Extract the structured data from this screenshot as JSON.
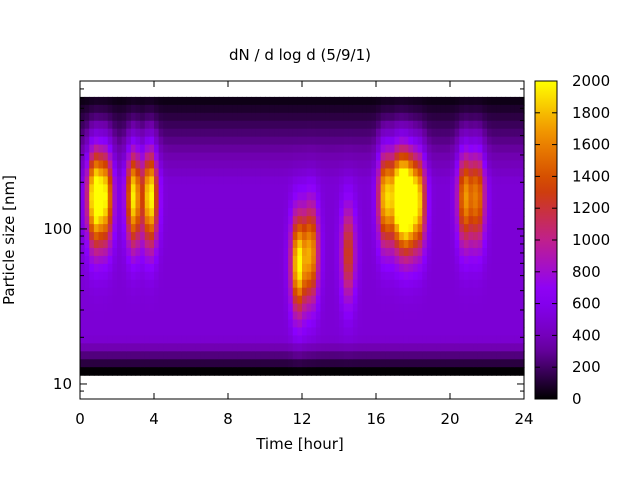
{
  "chart_data": {
    "type": "heatmap",
    "title": "dN / d log d (5/9/1)",
    "xlabel": "Time [hour]",
    "ylabel": "Particle size [nm]",
    "x_range": [
      0,
      24
    ],
    "x_ticks": [
      0,
      4,
      8,
      12,
      16,
      20,
      24
    ],
    "y_scale": "log",
    "y_range_nm": [
      8,
      900
    ],
    "y_ticks": [
      10,
      100
    ],
    "y_data_range_nm": [
      12,
      750
    ],
    "colorbar": {
      "range": [
        0,
        2000
      ],
      "ticks": [
        0,
        200,
        400,
        600,
        800,
        1000,
        1200,
        1400,
        1600,
        1800,
        2000
      ],
      "palette": "gnuplot-hot",
      "colors": [
        "#000000",
        "#6e00aa",
        "#8a00ff",
        "#c0208c",
        "#d04000",
        "#f09000",
        "#ffff00"
      ]
    },
    "background_level": 500,
    "events": [
      {
        "time_h": 0.8,
        "diameter_nm": 160,
        "peak": 1650
      },
      {
        "time_h": 1.4,
        "diameter_nm": 160,
        "peak": 1300
      },
      {
        "time_h": 2.9,
        "diameter_nm": 160,
        "peak": 1450
      },
      {
        "time_h": 3.8,
        "diameter_nm": 160,
        "peak": 1550
      },
      {
        "time_h": 11.8,
        "diameter_nm": 60,
        "peak": 1500
      },
      {
        "time_h": 12.5,
        "diameter_nm": 70,
        "peak": 1200
      },
      {
        "time_h": 14.5,
        "diameter_nm": 70,
        "peak": 820
      },
      {
        "time_h": 16.5,
        "diameter_nm": 160,
        "peak": 1350
      },
      {
        "time_h": 17.2,
        "diameter_nm": 160,
        "peak": 1550
      },
      {
        "time_h": 17.7,
        "diameter_nm": 150,
        "peak": 1800
      },
      {
        "time_h": 18.3,
        "diameter_nm": 150,
        "peak": 1300
      },
      {
        "time_h": 20.8,
        "diameter_nm": 160,
        "peak": 1150
      },
      {
        "time_h": 21.5,
        "diameter_nm": 160,
        "peak": 1050
      }
    ]
  }
}
